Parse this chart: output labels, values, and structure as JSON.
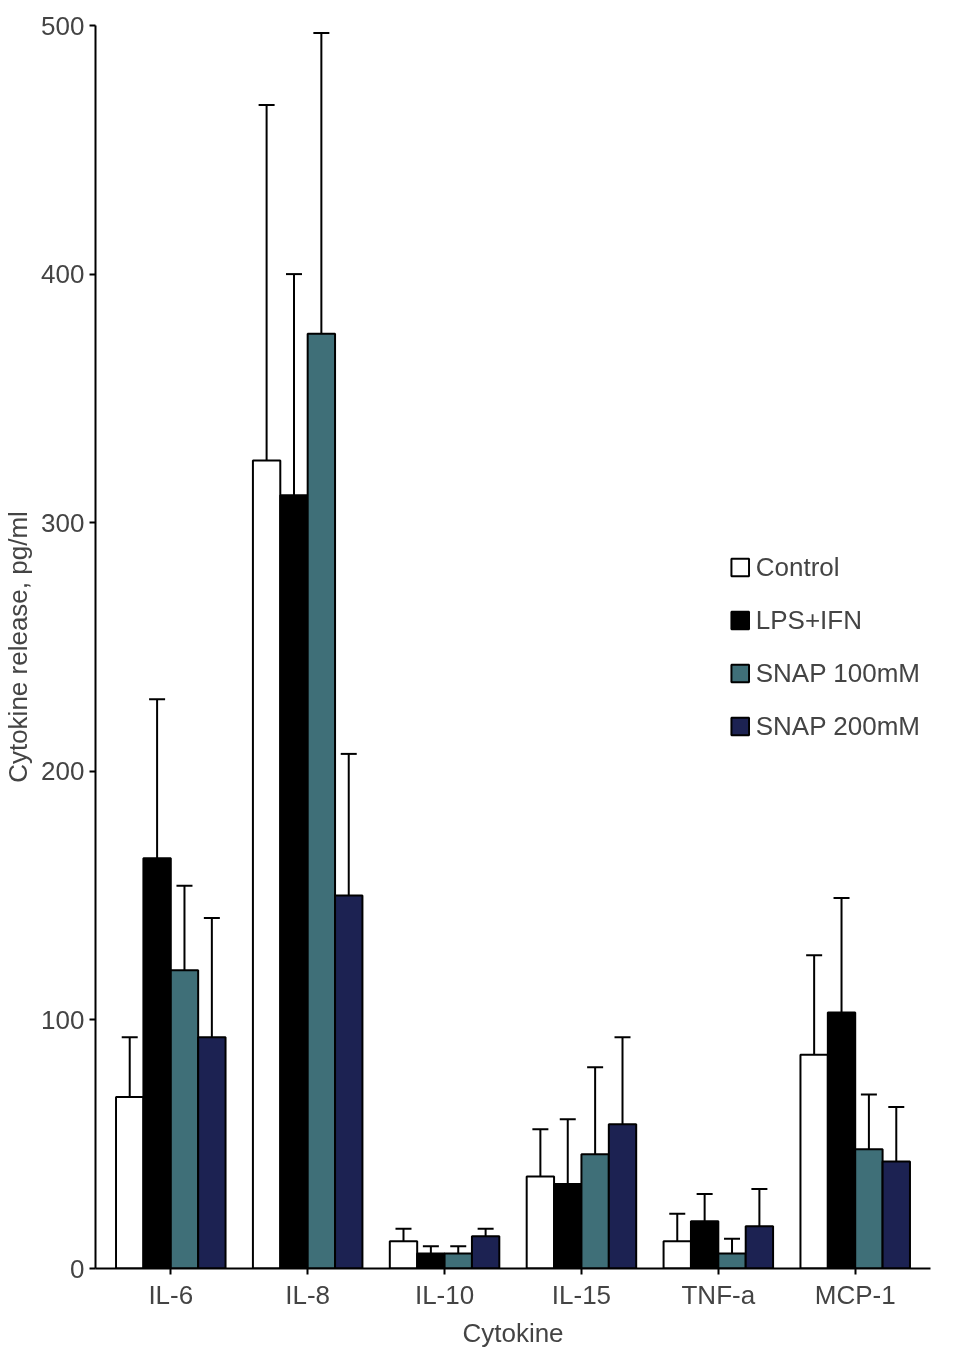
{
  "chart_data": {
    "type": "bar",
    "xlabel": "Cytokine",
    "ylabel": "Cytokine release, pg/ml",
    "categories": [
      "IL-6",
      "IL-8",
      "IL-10",
      "IL-15",
      "TNF-a",
      "MCP-1"
    ],
    "series": [
      {
        "name": "Control",
        "color": "#ffffff",
        "values": [
          69,
          325,
          11,
          37,
          11,
          86
        ],
        "errors": [
          [
            69,
            93
          ],
          [
            325,
            468
          ],
          [
            11,
            16
          ],
          [
            37,
            56
          ],
          [
            11,
            22
          ],
          [
            86,
            126
          ]
        ]
      },
      {
        "name": "LPS+IFN",
        "color": "#000000",
        "values": [
          165,
          311,
          6,
          34,
          19,
          103
        ],
        "errors": [
          [
            165,
            229
          ],
          [
            311,
            400
          ],
          [
            6,
            9
          ],
          [
            34,
            60
          ],
          [
            19,
            30
          ],
          [
            103,
            149
          ]
        ]
      },
      {
        "name": "SNAP 100mM",
        "color": "#3f6f78",
        "values": [
          120,
          376,
          6,
          46,
          6,
          48
        ],
        "errors": [
          [
            120,
            154
          ],
          [
            376,
            497
          ],
          [
            6,
            9
          ],
          [
            46,
            81
          ],
          [
            6,
            12
          ],
          [
            48,
            70
          ]
        ]
      },
      {
        "name": "SNAP 200mM",
        "color": "#1c2252",
        "values": [
          93,
          150,
          13,
          58,
          17,
          43
        ],
        "errors": [
          [
            93,
            141
          ],
          [
            150,
            207
          ],
          [
            13,
            16
          ],
          [
            58,
            93
          ],
          [
            17,
            32
          ],
          [
            43,
            65
          ]
        ]
      }
    ],
    "ylim": [
      0,
      500
    ],
    "yticks": [
      0,
      100,
      200,
      300,
      400,
      500
    ],
    "grid": false,
    "legend": "right"
  }
}
